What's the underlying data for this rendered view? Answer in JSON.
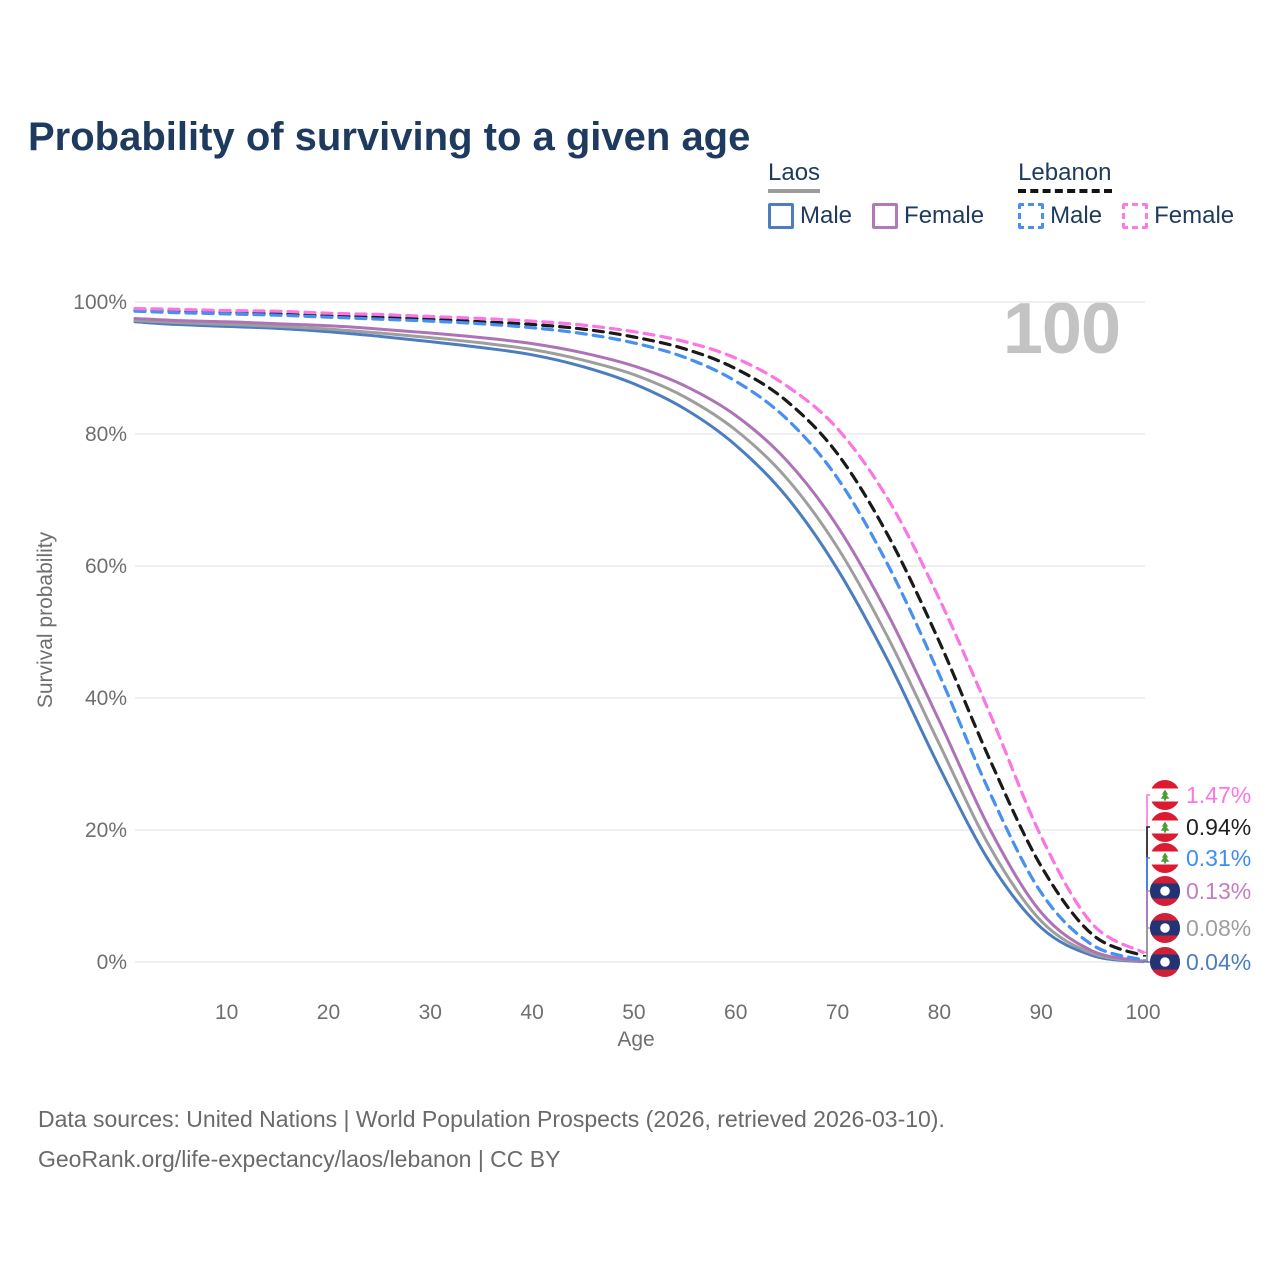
{
  "title": "Probability of surviving to a given age",
  "watermark_age": "100",
  "legend": {
    "groups": [
      {
        "id": "laos",
        "label": "Laos",
        "line_style": "solid",
        "underline_color": "#9c9c9c",
        "items": [
          {
            "id": "laos-male",
            "label": "Male",
            "color": "#4b7dbf"
          },
          {
            "id": "laos-female",
            "label": "Female",
            "color": "#b279b8"
          }
        ]
      },
      {
        "id": "lebanon",
        "label": "Lebanon",
        "line_style": "dashed",
        "underline_color": "#141414",
        "items": [
          {
            "id": "lebanon-male",
            "label": "Male",
            "color": "#4790f0"
          },
          {
            "id": "lebanon-female",
            "label": "Female",
            "color": "#fb7ae6"
          }
        ]
      }
    ]
  },
  "chart_data": {
    "type": "line",
    "title": "Probability of surviving to a given age",
    "xlabel": "Age",
    "ylabel": "Survival probability",
    "xlim": [
      1,
      100
    ],
    "ylim": [
      0,
      100
    ],
    "grid": "horizontal-only",
    "legend_position": "top-right",
    "x_ticks": [
      10,
      20,
      30,
      40,
      50,
      60,
      70,
      80,
      90,
      100
    ],
    "y_ticks": [
      {
        "value": 0,
        "label": "0%"
      },
      {
        "value": 20,
        "label": "20%"
      },
      {
        "value": 40,
        "label": "40%"
      },
      {
        "value": 60,
        "label": "60%"
      },
      {
        "value": 80,
        "label": "80%"
      },
      {
        "value": 100,
        "label": "100%"
      }
    ],
    "ages": [
      1,
      5,
      10,
      15,
      20,
      25,
      30,
      35,
      40,
      45,
      50,
      55,
      60,
      65,
      70,
      75,
      80,
      85,
      90,
      95,
      100
    ],
    "series": [
      {
        "id": "laos-male",
        "name": "Laos Male",
        "color": "#4b7dbf",
        "label_color": "#4b7dbf",
        "dash": "solid",
        "flag": "laos-flag-icon",
        "end_label": "0.04%",
        "values": [
          97.0,
          96.6,
          96.3,
          96.0,
          95.5,
          94.8,
          94.0,
          93.1,
          92.0,
          90.2,
          87.6,
          83.8,
          78.3,
          70.5,
          59.5,
          45.5,
          29.5,
          15.0,
          5.2,
          1.0,
          0.04
        ]
      },
      {
        "id": "laos-average",
        "name": "Laos Both sexes",
        "color": "#9e9e9e",
        "label_color": "#9e9e9e",
        "dash": "solid",
        "flag": "laos-flag-icon",
        "end_label": "0.08%",
        "values": [
          97.2,
          96.9,
          96.6,
          96.3,
          95.9,
          95.3,
          94.6,
          93.8,
          92.8,
          91.2,
          89.0,
          85.6,
          80.6,
          73.3,
          62.8,
          49.0,
          33.0,
          17.3,
          6.2,
          1.3,
          0.08
        ]
      },
      {
        "id": "laos-female",
        "name": "Laos Female",
        "color": "#ae73b6",
        "label_color": "#c27ec4",
        "dash": "solid",
        "flag": "laos-flag-icon",
        "end_label": "0.13%",
        "values": [
          97.5,
          97.2,
          97.0,
          96.7,
          96.4,
          95.9,
          95.3,
          94.6,
          93.7,
          92.3,
          90.3,
          87.3,
          82.8,
          76.0,
          66.0,
          52.5,
          36.5,
          20.0,
          7.5,
          1.7,
          0.13
        ]
      },
      {
        "id": "lebanon-average",
        "name": "Lebanon Both sexes",
        "color": "#1a1a1a",
        "label_color": "#1f1f1f",
        "dash": "dashed",
        "flag": "lebanon-flag-icon",
        "end_label": "0.94%",
        "values": [
          98.7,
          98.6,
          98.4,
          98.2,
          97.9,
          97.7,
          97.4,
          97.0,
          96.6,
          95.9,
          94.7,
          92.9,
          89.9,
          85.0,
          77.0,
          64.5,
          48.5,
          30.5,
          14.5,
          4.2,
          0.94
        ]
      },
      {
        "id": "lebanon-male",
        "name": "Lebanon Male",
        "color": "#4790f0",
        "label_color": "#3f8cf2",
        "dash": "dashed",
        "flag": "lebanon-flag-icon",
        "end_label": "0.31%",
        "values": [
          98.6,
          98.4,
          98.2,
          98.0,
          97.7,
          97.4,
          97.1,
          96.7,
          96.1,
          95.2,
          93.8,
          91.6,
          88.0,
          82.3,
          73.3,
          60.0,
          43.5,
          25.5,
          10.5,
          2.6,
          0.31
        ]
      },
      {
        "id": "lebanon-female",
        "name": "Lebanon Female",
        "color": "#fb76e1",
        "label_color": "#fb76e1",
        "dash": "dashed",
        "flag": "lebanon-flag-icon",
        "end_label": "1.47%",
        "values": [
          99.0,
          98.9,
          98.7,
          98.6,
          98.3,
          98.1,
          97.8,
          97.5,
          97.1,
          96.5,
          95.5,
          94.0,
          91.5,
          87.3,
          80.8,
          70.0,
          55.0,
          37.5,
          19.0,
          5.8,
          1.47
        ]
      }
    ]
  },
  "footer": {
    "line1": "Data sources: United Nations | World Population Prospects (2026, retrieved 2026-03-10).",
    "line2": "GeoRank.org/life-expectancy/laos/lebanon | CC BY"
  }
}
